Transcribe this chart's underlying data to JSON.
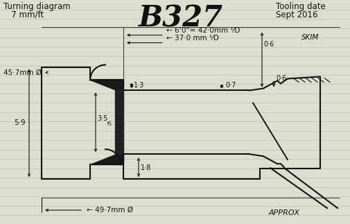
{
  "bg_color": "#deded0",
  "line_color": "#111111",
  "ruled_color": "#b8c0a8",
  "title": "B327",
  "top_left_1": "Turning diagram",
  "top_left_2": "   7 mm/ft",
  "top_right_1": "Tooling date",
  "top_right_2": "Sept 2016",
  "approx": "APPROX",
  "skim": "SKIM",
  "dim_457": "45·7mm Ø",
  "dim_6ft": "← 6‘0”= 42·0mm ¹⁄D",
  "dim_370": "← 37·0 mm ¹⁄D",
  "dim_13": "1·3",
  "dim_07": "0·7",
  "dim_06a": "0·6",
  "dim_06b": "0·6",
  "dim_35": "3·5",
  "dim_32": "³⁄₂",
  "dim_18": "1·8",
  "dim_59": "5·9",
  "dim_497": "← 49·7mm Ø"
}
